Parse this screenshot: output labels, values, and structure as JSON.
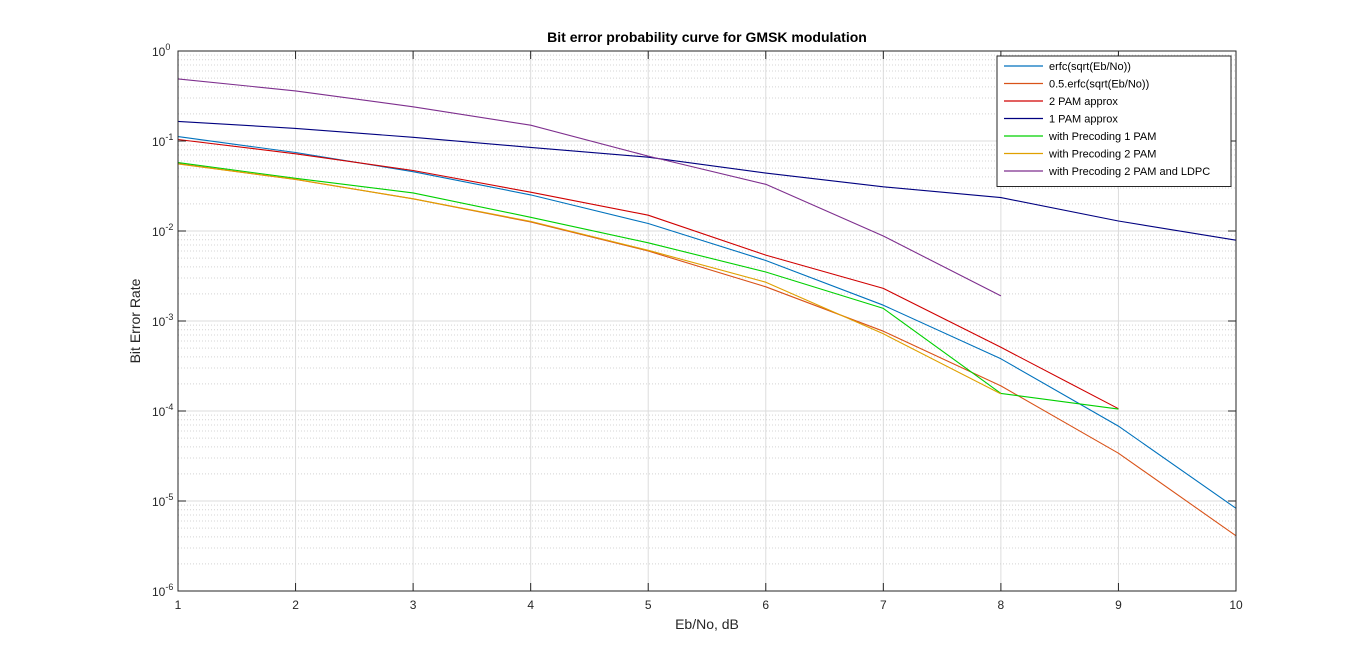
{
  "chart_data": {
    "type": "line",
    "title": "Bit error probability curve for GMSK modulation",
    "xlabel": "Eb/No, dB",
    "ylabel": "Bit Error Rate",
    "xlim": [
      1,
      10
    ],
    "ylim": [
      1e-06,
      1
    ],
    "yscale": "log",
    "grid": true,
    "minor_grid": true,
    "legend_position": "top-right",
    "x_ticks": [
      "1",
      "2",
      "3",
      "4",
      "5",
      "6",
      "7",
      "8",
      "9",
      "10"
    ],
    "y_ticks": [
      {
        "base": "10",
        "exp": "0"
      },
      {
        "base": "10",
        "exp": "-1"
      },
      {
        "base": "10",
        "exp": "-2"
      },
      {
        "base": "10",
        "exp": "-3"
      },
      {
        "base": "10",
        "exp": "-4"
      },
      {
        "base": "10",
        "exp": "-5"
      },
      {
        "base": "10",
        "exp": "-6"
      }
    ],
    "series": [
      {
        "name": "erfc(sqrt(Eb/No))",
        "color": "#0072bd",
        "x": [
          1,
          2,
          3,
          4,
          5,
          6,
          7,
          8,
          9,
          10
        ],
        "y": [
          0.112,
          0.0745,
          0.0456,
          0.0252,
          0.0121,
          0.0047,
          0.0015,
          0.00038,
          6.8e-05,
          8.3e-06
        ]
      },
      {
        "name": "0.5.erfc(sqrt(Eb/No))",
        "color": "#d95319",
        "x": [
          1,
          2,
          3,
          4,
          5,
          6,
          7,
          8,
          9,
          10
        ],
        "y": [
          0.056,
          0.0373,
          0.0228,
          0.0126,
          0.006,
          0.0024,
          0.00077,
          0.00019,
          3.4e-05,
          4.1e-06
        ]
      },
      {
        "name": "2 PAM approx",
        "color": "#d00000",
        "x": [
          1,
          2,
          3,
          4,
          5,
          6,
          7,
          8,
          9
        ],
        "y": [
          0.104,
          0.072,
          0.047,
          0.027,
          0.015,
          0.0054,
          0.0023,
          0.00051,
          0.000106
        ]
      },
      {
        "name": "1 PAM approx",
        "color": "#000080",
        "x": [
          1,
          2,
          3,
          4,
          5,
          6,
          7,
          8,
          9,
          10
        ],
        "y": [
          0.165,
          0.138,
          0.11,
          0.085,
          0.066,
          0.044,
          0.031,
          0.0235,
          0.0129,
          0.0079
        ]
      },
      {
        "name": "with Precoding 1 PAM",
        "color": "#00d000",
        "x": [
          1,
          2,
          3,
          4,
          5,
          6,
          7,
          8,
          9
        ],
        "y": [
          0.0575,
          0.0385,
          0.0265,
          0.0142,
          0.0074,
          0.0035,
          0.00138,
          0.000157,
          0.000105
        ]
      },
      {
        "name": "with Precoding 2 PAM",
        "color": "#e0a000",
        "x": [
          1,
          2,
          3,
          4,
          5,
          6,
          7,
          8
        ],
        "y": [
          0.0555,
          0.0375,
          0.0228,
          0.0128,
          0.0061,
          0.0027,
          0.00072,
          0.000155
        ]
      },
      {
        "name": "with Precoding 2 PAM and LDPC",
        "color": "#7e2f8e",
        "x": [
          1,
          2,
          3,
          4,
          5,
          6,
          7,
          8
        ],
        "y": [
          0.49,
          0.36,
          0.24,
          0.15,
          0.068,
          0.033,
          0.0088,
          0.0019
        ]
      }
    ]
  }
}
